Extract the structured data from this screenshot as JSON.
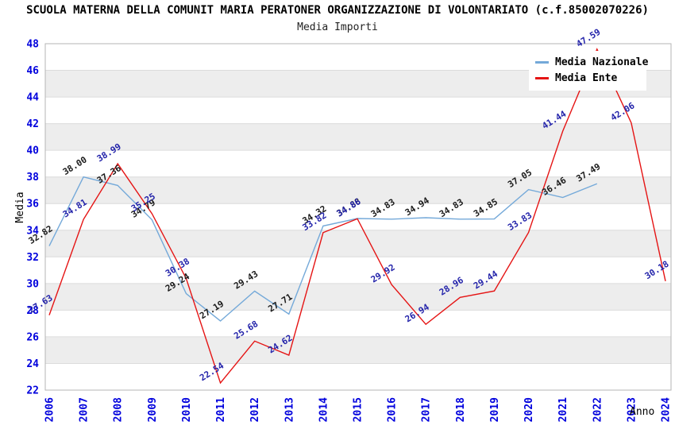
{
  "header": {
    "title": "SCUOLA MATERNA DELLA COMUNIT MARIA PERATONER ORGANIZZAZIONE DI VOLONTARIATO (c.f.85002070226)",
    "subtitle": "Media Importi"
  },
  "chart_data": {
    "type": "line",
    "title": "SCUOLA MATERNA DELLA COMUNIT MARIA PERATONER ORGANIZZAZIONE DI VOLONTARIATO (c.f.85002070226)",
    "subtitle": "Media Importi",
    "xlabel": "Anno",
    "ylabel": "Media",
    "x": [
      2006,
      2007,
      2008,
      2009,
      2010,
      2011,
      2012,
      2013,
      2014,
      2015,
      2016,
      2017,
      2018,
      2019,
      2020,
      2021,
      2022,
      2023,
      2024
    ],
    "ylim": [
      22,
      48
    ],
    "ytick_step": 2,
    "yticks": [
      22,
      24,
      26,
      28,
      30,
      32,
      34,
      36,
      38,
      40,
      42,
      44,
      46,
      48
    ],
    "grid": "horizontal-bands-alternating",
    "legend_position": "top-right",
    "band_colors": [
      "#ffffff",
      "#ededed"
    ],
    "axis_tick_color": "#0000dd",
    "series": [
      {
        "name": "Media Nazionale",
        "color": "#74a9d9",
        "label_color": "#1a1a1a",
        "values": [
          32.82,
          38.0,
          37.36,
          34.79,
          29.24,
          27.19,
          29.43,
          27.71,
          34.32,
          34.88,
          34.83,
          34.94,
          34.83,
          34.85,
          37.05,
          36.46,
          37.49,
          null,
          null
        ]
      },
      {
        "name": "Media Ente",
        "color": "#e51414",
        "label_color": "#2323aa",
        "values": [
          27.63,
          34.81,
          38.99,
          35.25,
          30.38,
          22.54,
          25.68,
          24.62,
          33.82,
          34.86,
          29.92,
          26.94,
          28.96,
          29.44,
          33.83,
          41.44,
          47.59,
          42.06,
          30.18
        ]
      }
    ]
  }
}
